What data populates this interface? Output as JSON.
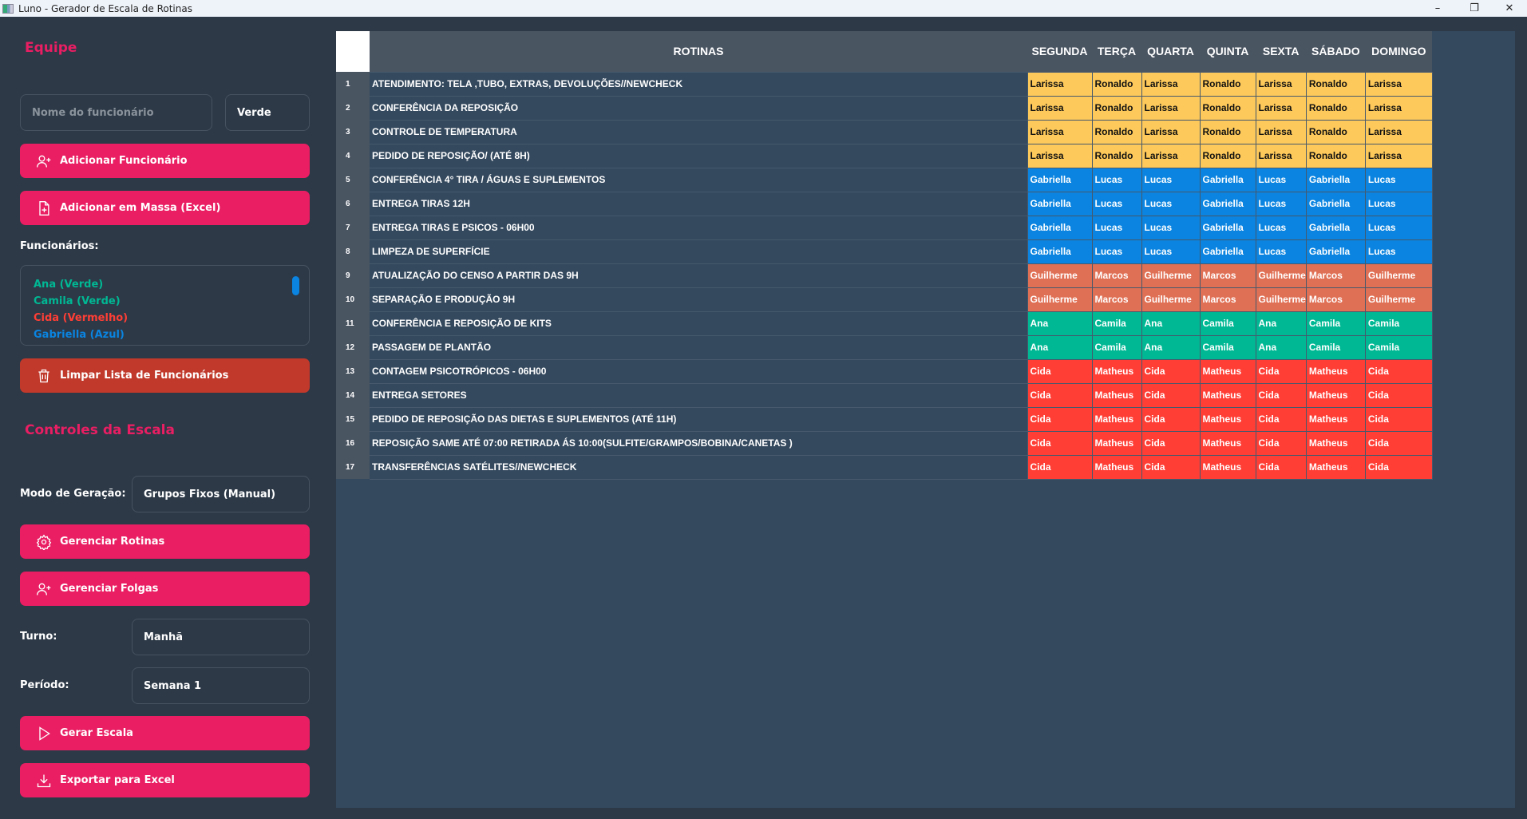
{
  "window": {
    "title": "Luno - Gerador de Escala de Rotinas"
  },
  "sidebar": {
    "team_heading": "Equipe",
    "name_placeholder": "Nome do funcionário",
    "color_select": "Verde",
    "add_button": "Adicionar Funcionário",
    "bulk_button": "Adicionar em Massa (Excel)",
    "employees_label": "Funcionários:",
    "employees": [
      {
        "label": "Ana (Verde)",
        "color": "#00b894"
      },
      {
        "label": "Camila (Verde)",
        "color": "#00b894"
      },
      {
        "label": "Cida (Vermelho)",
        "color": "#ff3e35"
      },
      {
        "label": "Gabriella (Azul)",
        "color": "#0a84e0"
      }
    ],
    "clear_button": "Limpar Lista de Funcionários",
    "controls_heading": "Controles da Escala",
    "mode_label": "Modo de Geração:",
    "mode_value": "Grupos Fixos (Manual)",
    "routines_button": "Gerenciar Rotinas",
    "dayoff_button": "Gerenciar Folgas",
    "shift_label": "Turno:",
    "shift_value": "Manhã",
    "period_label": "Período:",
    "period_value": "Semana 1",
    "generate_button": "Gerar Escala",
    "export_button": "Exportar para Excel"
  },
  "colors": {
    "Amarelo": "#fdc95a",
    "Azul": "#0a84e0",
    "Laranja": "#e07055",
    "Verde": "#00b894",
    "Vermelho": "#ff3e35"
  },
  "table": {
    "routines_header": "ROTINAS",
    "days": [
      "SEGUNDA",
      "TERÇA",
      "QUARTA",
      "QUINTA",
      "SEXTA",
      "SÁBADO",
      "DOMINGO"
    ],
    "rows": [
      {
        "n": "1",
        "routine": "ATENDIMENTO: TELA ,TUBO, EXTRAS, DEVOLUÇÕES//NEWCHECK",
        "color": "Amarelo",
        "cells": [
          "Larissa",
          "Ronaldo",
          "Larissa",
          "Ronaldo",
          "Larissa",
          "Ronaldo",
          "Larissa"
        ]
      },
      {
        "n": "2",
        "routine": "CONFERÊNCIA DA REPOSIÇÃO",
        "color": "Amarelo",
        "cells": [
          "Larissa",
          "Ronaldo",
          "Larissa",
          "Ronaldo",
          "Larissa",
          "Ronaldo",
          "Larissa"
        ]
      },
      {
        "n": "3",
        "routine": "CONTROLE DE TEMPERATURA",
        "color": "Amarelo",
        "cells": [
          "Larissa",
          "Ronaldo",
          "Larissa",
          "Ronaldo",
          "Larissa",
          "Ronaldo",
          "Larissa"
        ]
      },
      {
        "n": "4",
        "routine": "PEDIDO DE REPOSIÇÃO/  (ATÉ 8H)",
        "color": "Amarelo",
        "cells": [
          "Larissa",
          "Ronaldo",
          "Larissa",
          "Ronaldo",
          "Larissa",
          "Ronaldo",
          "Larissa"
        ]
      },
      {
        "n": "5",
        "routine": "CONFERÊNCIA 4° TIRA / ÁGUAS E SUPLEMENTOS",
        "color": "Azul",
        "cells": [
          "Gabriella",
          "Lucas",
          "Lucas",
          "Gabriella",
          "Lucas",
          "Gabriella",
          "Lucas"
        ]
      },
      {
        "n": "6",
        "routine": "ENTREGA  TIRAS 12H",
        "color": "Azul",
        "cells": [
          "Gabriella",
          "Lucas",
          "Lucas",
          "Gabriella",
          "Lucas",
          "Gabriella",
          "Lucas"
        ]
      },
      {
        "n": "7",
        "routine": "ENTREGA TIRAS E PSICOS - 06H00",
        "color": "Azul",
        "cells": [
          "Gabriella",
          "Lucas",
          "Lucas",
          "Gabriella",
          "Lucas",
          "Gabriella",
          "Lucas"
        ]
      },
      {
        "n": "8",
        "routine": "LIMPEZA DE SUPERFÍCIE",
        "color": "Azul",
        "cells": [
          "Gabriella",
          "Lucas",
          "Lucas",
          "Gabriella",
          "Lucas",
          "Gabriella",
          "Lucas"
        ]
      },
      {
        "n": "9",
        "routine": "ATUALIZAÇÃO DO CENSO  A PARTIR DAS 9H",
        "color": "Laranja",
        "cells": [
          "Guilherme",
          "Marcos",
          "Guilherme",
          "Marcos",
          "Guilherme",
          "Marcos",
          "Guilherme"
        ]
      },
      {
        "n": "10",
        "routine": "SEPARAÇÃO E PRODUÇÃO 9H",
        "color": "Laranja",
        "cells": [
          "Guilherme",
          "Marcos",
          "Guilherme",
          "Marcos",
          "Guilherme",
          "Marcos",
          "Guilherme"
        ]
      },
      {
        "n": "11",
        "routine": "CONFERÊNCIA E REPOSIÇÃO DE KITS",
        "color": "Verde",
        "cells": [
          "Ana",
          "Camila",
          "Ana",
          "Camila",
          "Ana",
          "Camila",
          "Camila"
        ]
      },
      {
        "n": "12",
        "routine": "PASSAGEM DE PLANTÃO",
        "color": "Verde",
        "cells": [
          "Ana",
          "Camila",
          "Ana",
          "Camila",
          "Ana",
          "Camila",
          "Camila"
        ]
      },
      {
        "n": "13",
        "routine": "CONTAGEM PSICOTRÓPICOS - 06H00",
        "color": "Vermelho",
        "cells": [
          "Cida",
          "Matheus",
          "Cida",
          "Matheus",
          "Cida",
          "Matheus",
          "Cida"
        ]
      },
      {
        "n": "14",
        "routine": "ENTREGA SETORES",
        "color": "Vermelho",
        "cells": [
          "Cida",
          "Matheus",
          "Cida",
          "Matheus",
          "Cida",
          "Matheus",
          "Cida"
        ]
      },
      {
        "n": "15",
        "routine": "PEDIDO DE REPOSIÇÃO DAS DIETAS E SUPLEMENTOS (ATÉ 11H)",
        "color": "Vermelho",
        "cells": [
          "Cida",
          "Matheus",
          "Cida",
          "Matheus",
          "Cida",
          "Matheus",
          "Cida"
        ]
      },
      {
        "n": "16",
        "routine": "REPOSIÇÃO  SAME ATÉ 07:00 RETIRADA ÁS 10:00(SULFITE/GRAMPOS/BOBINA/CANETAS )",
        "color": "Vermelho",
        "cells": [
          "Cida",
          "Matheus",
          "Cida",
          "Matheus",
          "Cida",
          "Matheus",
          "Cida"
        ]
      },
      {
        "n": "17",
        "routine": "TRANSFERÊNCIAS SATÉLITES//NEWCHECK",
        "color": "Vermelho",
        "cells": [
          "Cida",
          "Matheus",
          "Cida",
          "Matheus",
          "Cida",
          "Matheus",
          "Cida"
        ]
      }
    ]
  }
}
